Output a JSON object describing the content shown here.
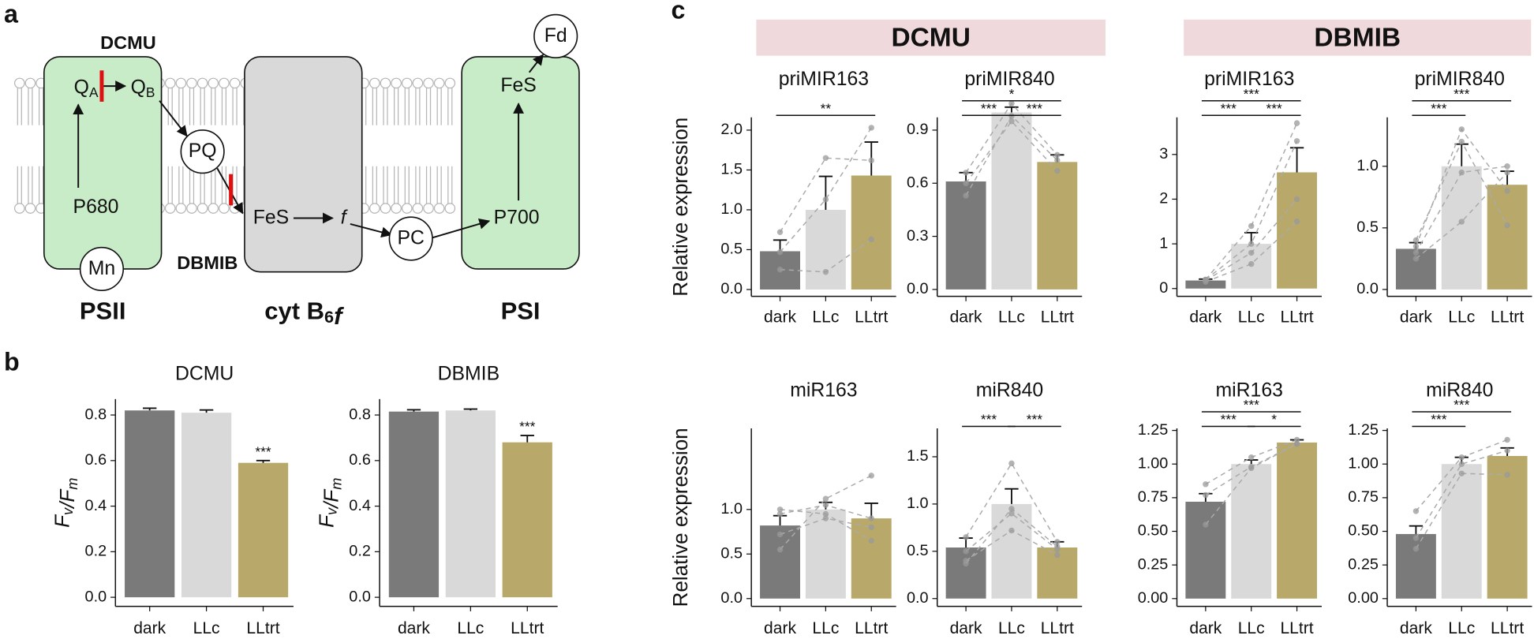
{
  "panel_labels": [
    "a",
    "b",
    "c"
  ],
  "diagram": {
    "complexes": [
      {
        "text": "PSII"
      },
      {
        "text": "cyt B",
        "sub": "6",
        "tail": "f"
      },
      {
        "text": "PSI"
      }
    ],
    "nodes": [
      {
        "text": "Q",
        "sub": "A"
      },
      {
        "text": "Q",
        "sub": "B"
      },
      {
        "text": "PQ"
      },
      {
        "text": "FeS"
      },
      {
        "text": "f"
      },
      {
        "text": "PC"
      },
      {
        "text": "P700"
      },
      {
        "text": "FeS"
      },
      {
        "text": "Fd"
      },
      {
        "text": "P680"
      },
      {
        "text": "Mn"
      }
    ],
    "inhibitors": [
      "DCMU",
      "DBMIB"
    ]
  },
  "column_headers": [
    "DCMU",
    "DBMIB"
  ],
  "chart_data": [
    {
      "type": "bar",
      "title": "DCMU",
      "y_label": [
        {
          "text": "F",
          "sub": "v"
        },
        {
          "text": "/F",
          "sub": "m"
        }
      ],
      "categories": [
        "dark",
        "LLc",
        "LLtrt"
      ],
      "colors": [
        "#7a7a7a",
        "#d9d9d9",
        "#b8a96a"
      ],
      "values": [
        0.82,
        0.81,
        0.59
      ],
      "errors": [
        0.01,
        0.012,
        0.01
      ],
      "annotations": [
        {
          "category": "LLtrt",
          "label": "***"
        }
      ],
      "ylim": [
        -0.04,
        0.87
      ],
      "yticks": [
        {
          "value": 0,
          "label": "0.0"
        },
        0.2,
        0.4,
        0.6,
        0.8
      ]
    },
    {
      "type": "bar",
      "title": "DBMIB",
      "y_label": [
        {
          "text": "F",
          "sub": "v"
        },
        {
          "text": "/F",
          "sub": "m"
        }
      ],
      "categories": [
        "dark",
        "LLc",
        "LLtrt"
      ],
      "colors": [
        "#7a7a7a",
        "#d9d9d9",
        "#b8a96a"
      ],
      "values": [
        0.815,
        0.82,
        0.68
      ],
      "errors": [
        0.008,
        0.006,
        0.03
      ],
      "annotations": [
        {
          "category": "LLtrt",
          "label": "***"
        }
      ],
      "ylim": [
        -0.04,
        0.87
      ],
      "yticks": [
        {
          "value": 0,
          "label": "0.0"
        },
        0.2,
        0.4,
        0.6,
        0.8
      ]
    },
    {
      "type": "bar",
      "title": "priMIR163",
      "y_label": "Relative expression",
      "categories": [
        "dark",
        "LLc",
        "LLtrt"
      ],
      "colors": [
        "#7a7a7a",
        "#d9d9d9",
        "#b8a96a"
      ],
      "values": [
        0.48,
        1.0,
        1.43
      ],
      "errors": [
        0.14,
        0.42,
        0.42
      ],
      "replicates": [
        [
          0.72,
          1.65,
          1.62
        ],
        [
          0.25,
          0.22,
          0.63
        ],
        [
          0.47,
          1.13,
          2.03
        ]
      ],
      "significance": [
        {
          "from": "dark",
          "to": "LLtrt",
          "label": "**"
        }
      ],
      "ylim": [
        -0.086,
        2.16
      ],
      "yticks": [
        {
          "value": 0,
          "label": "0.0"
        },
        0.5,
        {
          "value": 1,
          "label": "1.0"
        },
        1.5,
        {
          "value": 2,
          "label": "2.0"
        }
      ]
    },
    {
      "type": "bar",
      "title": "priMIR840",
      "categories": [
        "dark",
        "LLc",
        "LLtrt"
      ],
      "colors": [
        "#7a7a7a",
        "#d9d9d9",
        "#b8a96a"
      ],
      "values": [
        0.61,
        1.0,
        0.72
      ],
      "errors": [
        0.05,
        0.03,
        0.04
      ],
      "replicates": [
        [
          0.53,
          0.98,
          0.73
        ],
        [
          0.6,
          0.95,
          0.67
        ],
        [
          0.66,
          1.05,
          0.76
        ]
      ],
      "significance": [
        {
          "from": "dark",
          "to": "LLc",
          "label": "***"
        },
        {
          "from": "LLc",
          "to": "LLtrt",
          "label": "***"
        },
        {
          "from": "dark",
          "to": "LLtrt",
          "label": "*"
        }
      ],
      "ylim": [
        -0.039,
        0.972
      ],
      "yticks": [
        {
          "value": 0,
          "label": "0.0"
        },
        0.3,
        0.6,
        0.9
      ]
    },
    {
      "type": "bar",
      "title": "priMIR163",
      "categories": [
        "dark",
        "LLc",
        "LLtrt"
      ],
      "colors": [
        "#7a7a7a",
        "#d9d9d9",
        "#b8a96a"
      ],
      "values": [
        0.18,
        1.0,
        2.6
      ],
      "errors": [
        0.03,
        0.25,
        0.55
      ],
      "replicates": [
        [
          0.15,
          0.55,
          1.5
        ],
        [
          0.2,
          1.4,
          3.7
        ],
        [
          0.18,
          0.8,
          2.0
        ],
        [
          0.2,
          1.0,
          3.3
        ]
      ],
      "significance": [
        {
          "from": "dark",
          "to": "LLc",
          "label": "***"
        },
        {
          "from": "LLc",
          "to": "LLtrt",
          "label": "***"
        },
        {
          "from": "dark",
          "to": "LLtrt",
          "label": "***"
        }
      ],
      "ylim": [
        -0.175,
        3.83
      ],
      "yticks": [
        0,
        1,
        2,
        3
      ]
    },
    {
      "type": "bar",
      "title": "priMIR840",
      "categories": [
        "dark",
        "LLc",
        "LLtrt"
      ],
      "colors": [
        "#7a7a7a",
        "#d9d9d9",
        "#b8a96a"
      ],
      "values": [
        0.33,
        1.0,
        0.85
      ],
      "errors": [
        0.05,
        0.18,
        0.11
      ],
      "replicates": [
        [
          0.25,
          0.55,
          0.95
        ],
        [
          0.35,
          1.3,
          0.8
        ],
        [
          0.4,
          1.2,
          0.52
        ],
        [
          0.3,
          0.95,
          1.0
        ]
      ],
      "significance": [
        {
          "from": "dark",
          "to": "LLc",
          "label": "***"
        },
        {
          "from": "dark",
          "to": "LLtrt",
          "label": "***"
        }
      ],
      "ylim": [
        -0.056,
        1.397
      ],
      "yticks": [
        {
          "value": 0,
          "label": "0.0"
        },
        0.5,
        {
          "value": 1,
          "label": "1.0"
        }
      ]
    },
    {
      "type": "bar",
      "title": "miR163",
      "y_label": "Relative expression",
      "categories": [
        "dark",
        "LLc",
        "LLtrt"
      ],
      "colors": [
        "#7a7a7a",
        "#d9d9d9",
        "#b8a96a"
      ],
      "values": [
        0.82,
        1.0,
        0.9
      ],
      "errors": [
        0.11,
        0.08,
        0.17
      ],
      "replicates": [
        [
          0.55,
          1.12,
          1.38
        ],
        [
          1.0,
          0.95,
          0.65
        ],
        [
          0.72,
          0.9,
          0.8
        ],
        [
          0.95,
          1.05,
          0.9
        ]
      ],
      "significance": [],
      "ylim": [
        -0.088,
        1.91
      ],
      "yticks": [
        {
          "value": 0,
          "label": "0.0"
        },
        0.5,
        {
          "value": 1,
          "label": "1.0"
        }
      ]
    },
    {
      "type": "bar",
      "title": "miR840",
      "categories": [
        "dark",
        "LLc",
        "LLtrt"
      ],
      "colors": [
        "#7a7a7a",
        "#d9d9d9",
        "#b8a96a"
      ],
      "values": [
        0.54,
        1.0,
        0.54
      ],
      "errors": [
        0.1,
        0.16,
        0.06
      ],
      "replicates": [
        [
          0.65,
          1.43,
          0.6
        ],
        [
          0.4,
          0.72,
          0.46
        ],
        [
          0.5,
          0.9,
          0.52
        ],
        [
          0.37,
          0.95,
          0.55
        ]
      ],
      "significance": [
        {
          "from": "dark",
          "to": "LLc",
          "label": "***"
        },
        {
          "from": "LLc",
          "to": "LLtrt",
          "label": "***"
        }
      ],
      "ylim": [
        -0.083,
        1.8
      ],
      "yticks": [
        {
          "value": 0,
          "label": "0.0"
        },
        0.5,
        {
          "value": 1,
          "label": "1.0"
        },
        1.5
      ]
    },
    {
      "type": "bar",
      "title": "miR163",
      "categories": [
        "dark",
        "LLc",
        "LLtrt"
      ],
      "colors": [
        "#7a7a7a",
        "#d9d9d9",
        "#b8a96a"
      ],
      "values": [
        0.72,
        1.0,
        1.16
      ],
      "errors": [
        0.06,
        0.03,
        0.02
      ],
      "replicates": [
        [
          0.55,
          0.97,
          1.15
        ],
        [
          0.85,
          1.05,
          1.18
        ],
        [
          0.77,
          0.98,
          1.15
        ]
      ],
      "significance": [
        {
          "from": "dark",
          "to": "LLc",
          "label": "***"
        },
        {
          "from": "LLc",
          "to": "LLtrt",
          "label": "*"
        },
        {
          "from": "dark",
          "to": "LLtrt",
          "label": "***"
        }
      ],
      "ylim": [
        -0.058,
        1.265
      ],
      "yticks": [
        {
          "value": 0,
          "label": "0.00"
        },
        0.25,
        {
          "value": 0.5,
          "label": "0.50"
        },
        0.75,
        {
          "value": 1,
          "label": "1.00"
        },
        1.25
      ]
    },
    {
      "type": "bar",
      "title": "miR840",
      "categories": [
        "dark",
        "LLc",
        "LLtrt"
      ],
      "colors": [
        "#7a7a7a",
        "#d9d9d9",
        "#b8a96a"
      ],
      "values": [
        0.48,
        1.0,
        1.06
      ],
      "errors": [
        0.06,
        0.05,
        0.06
      ],
      "replicates": [
        [
          0.37,
          0.93,
          0.92
        ],
        [
          0.65,
          1.05,
          1.18
        ],
        [
          0.45,
          1.0,
          1.1
        ]
      ],
      "significance": [
        {
          "from": "dark",
          "to": "LLc",
          "label": "***"
        },
        {
          "from": "dark",
          "to": "LLtrt",
          "label": "***"
        }
      ],
      "ylim": [
        -0.058,
        1.265
      ],
      "yticks": [
        {
          "value": 0,
          "label": "0.00"
        },
        0.25,
        {
          "value": 0.5,
          "label": "0.50"
        },
        0.75,
        {
          "value": 1,
          "label": "1.00"
        },
        1.25
      ]
    }
  ]
}
